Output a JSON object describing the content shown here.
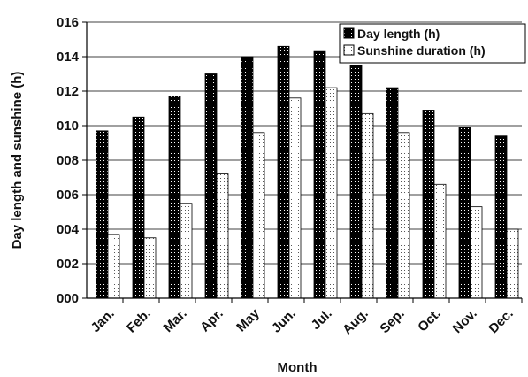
{
  "chart_data": {
    "type": "bar",
    "categories": [
      "Jan.",
      "Feb.",
      "Mar.",
      "Apr.",
      "May",
      "Jun.",
      "Jul.",
      "Aug.",
      "Sep.",
      "Oct.",
      "Nov.",
      "Dec."
    ],
    "series": [
      {
        "name": "Day length (h)",
        "values": [
          9.7,
          10.5,
          11.7,
          13.0,
          14.0,
          14.6,
          14.3,
          13.5,
          12.2,
          10.9,
          9.9,
          9.4
        ],
        "color": "#000000",
        "pattern": "dotted-dark"
      },
      {
        "name": "Sunshine duration (h)",
        "values": [
          3.7,
          3.5,
          5.5,
          7.2,
          9.6,
          11.6,
          12.2,
          10.7,
          9.6,
          6.6,
          5.3,
          4.0
        ],
        "color": "#ffffff",
        "pattern": "dotted-light"
      }
    ],
    "xlabel": "Month",
    "ylabel": "Day length and sunshine (h)",
    "ylim": [
      0,
      16
    ],
    "yticks": [
      0,
      2,
      4,
      6,
      8,
      10,
      12,
      14,
      16
    ],
    "ytick_labels": [
      "000",
      "002",
      "004",
      "006",
      "008",
      "010",
      "012",
      "014",
      "016"
    ],
    "legend_position": "top-right",
    "grid": "horizontal"
  }
}
